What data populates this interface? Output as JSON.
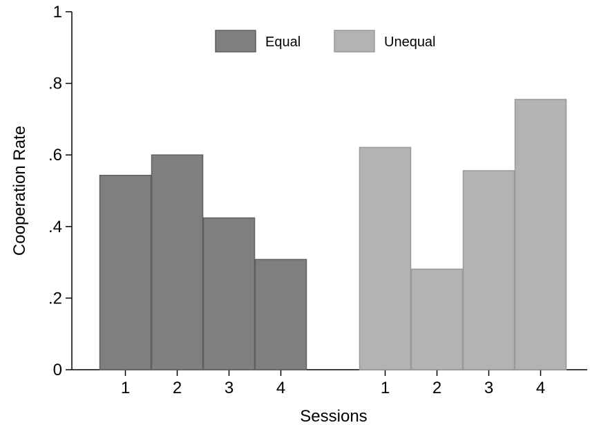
{
  "chart_data": {
    "type": "bar",
    "ylabel": "Cooperation Rate",
    "xlabel": "Sessions",
    "ylim": [
      0,
      1
    ],
    "y_ticks": [
      {
        "value": 0,
        "label": "0"
      },
      {
        "value": 0.2,
        "label": ".2"
      },
      {
        "value": 0.4,
        "label": ".4"
      },
      {
        "value": 0.6,
        "label": ".6"
      },
      {
        "value": 0.8,
        "label": ".8"
      },
      {
        "value": 1,
        "label": "1"
      }
    ],
    "categories": [
      "1",
      "2",
      "3",
      "4"
    ],
    "legend_position": "top-center",
    "grid": false,
    "series": [
      {
        "name": "Equal",
        "color": "#7f7f7f",
        "values": [
          0.543,
          0.6,
          0.424,
          0.308
        ]
      },
      {
        "name": "Unequal",
        "color": "#b3b3b3",
        "values": [
          0.621,
          0.281,
          0.556,
          0.755
        ]
      }
    ]
  }
}
